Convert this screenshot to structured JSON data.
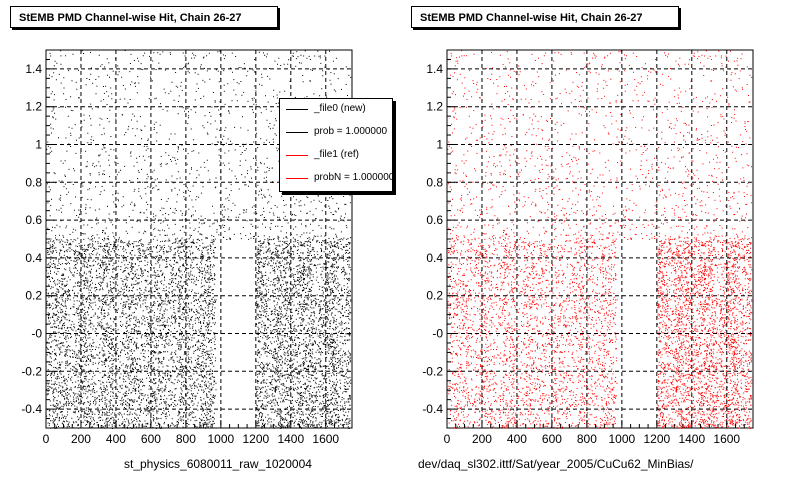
{
  "panels": [
    {
      "title": "StEMB PMD Channel-wise Hit, Chain 26-27",
      "xcaption": "st_physics_6080011_raw_1020004"
    },
    {
      "title": "StEMB PMD Channel-wise Hit, Chain 26-27",
      "xcaption": "dev/daq_sl302.ittf/Sat/year_2005/CuCu62_MinBias/"
    }
  ],
  "legend": [
    {
      "label": "_file0 (new)",
      "color": "#000000"
    },
    {
      "label": "prob = 1.000000",
      "color": "#000000"
    },
    {
      "label": "_file1 (ref)",
      "color": "#ff0000"
    },
    {
      "label": "probN = 1.000000",
      "color": "#ff0000"
    }
  ],
  "chart_data": [
    {
      "type": "scatter",
      "title": "StEMB PMD Channel-wise Hit, Chain 26-27",
      "xlabel": "st_physics_6080011_raw_1020004",
      "xlim": [
        0,
        1750
      ],
      "ylim": [
        -0.5,
        1.5
      ],
      "xticks": [
        "0",
        "200",
        "400",
        "600",
        "800",
        "1000",
        "1200",
        "1400",
        "1600"
      ],
      "yticks": [
        "-0.4",
        "-0.2",
        "-0",
        "0.2",
        "0.4",
        "0.6",
        "0.8",
        "1",
        "1.2",
        "1.4"
      ],
      "grid": true,
      "color": "#000000",
      "dense_band": {
        "ymin": -0.5,
        "ymax": 0.5,
        "x_ranges": [
          [
            0,
            970
          ],
          [
            1200,
            1740
          ]
        ]
      },
      "sparse_region": {
        "ymin": 0.5,
        "ymax": 1.5,
        "x_range": [
          0,
          1740
        ]
      }
    },
    {
      "type": "scatter",
      "title": "StEMB PMD Channel-wise Hit, Chain 26-27",
      "xlabel": "dev/daq_sl302.ittf/Sat/year_2005/CuCu62_MinBias/",
      "xlim": [
        0,
        1750
      ],
      "ylim": [
        -0.5,
        1.5
      ],
      "xticks": [
        "0",
        "200",
        "400",
        "600",
        "800",
        "1000",
        "1200",
        "1400",
        "1600"
      ],
      "yticks": [
        "-0.4",
        "-0.2",
        "-0",
        "0.2",
        "0.4",
        "0.6",
        "0.8",
        "1",
        "1.2",
        "1.4"
      ],
      "grid": true,
      "color": "#ff0000",
      "dense_band": {
        "ymin": -0.5,
        "ymax": 0.5,
        "x_ranges": [
          [
            0,
            970
          ],
          [
            1200,
            1740
          ]
        ]
      },
      "sparse_region": {
        "ymin": 0.5,
        "ymax": 1.5,
        "x_range": [
          0,
          1740
        ]
      }
    }
  ]
}
